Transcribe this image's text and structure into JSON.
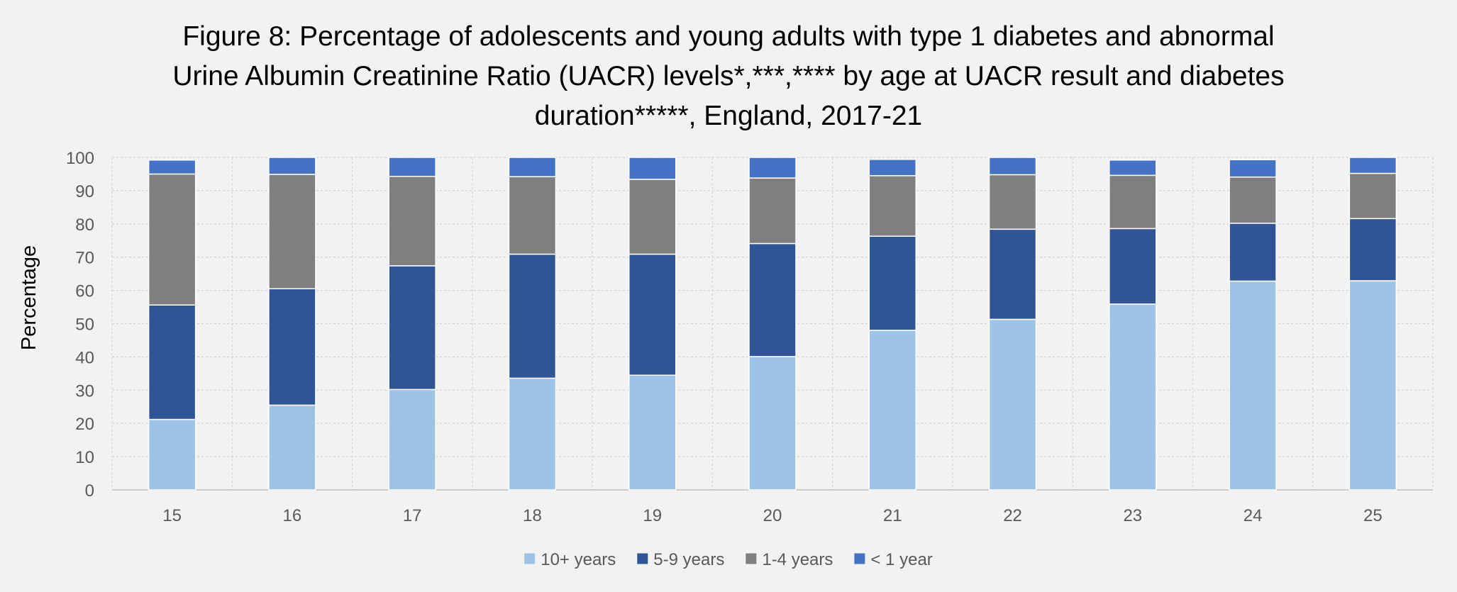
{
  "chart_data": {
    "type": "bar",
    "stacked": true,
    "title": [
      "Figure 8: Percentage of adolescents and young adults with type 1 diabetes and abnormal",
      "Urine Albumin Creatinine Ratio (UACR) levels*,***,**** by age at UACR result and diabetes",
      "duration*****, England, 2017-21"
    ],
    "xlabel": "",
    "ylabel": "Percentage",
    "ylim": [
      0,
      100
    ],
    "yticks": [
      0,
      10,
      20,
      30,
      40,
      50,
      60,
      70,
      80,
      90,
      100
    ],
    "grid": true,
    "legend_position": "bottom",
    "categories": [
      "15",
      "16",
      "17",
      "18",
      "19",
      "20",
      "21",
      "22",
      "23",
      "24",
      "25"
    ],
    "series": [
      {
        "name": "10+ years",
        "color": "#9dc3e6",
        "values": [
          21.2,
          25.5,
          30.2,
          33.6,
          34.5,
          40.1,
          48.0,
          51.3,
          55.9,
          62.8,
          62.9
        ]
      },
      {
        "name": "5-9 years",
        "color": "#2f5597",
        "values": [
          34.4,
          35.0,
          37.2,
          37.3,
          36.4,
          34.0,
          28.3,
          27.1,
          22.7,
          17.4,
          18.7
        ]
      },
      {
        "name": "1-4 years",
        "color": "#7f7f7f",
        "values": [
          39.4,
          34.4,
          26.9,
          23.3,
          22.5,
          19.7,
          18.2,
          16.4,
          16.0,
          13.9,
          13.6
        ]
      },
      {
        "name": "< 1 year",
        "color": "#4472c4",
        "values": [
          4.2,
          5.1,
          5.7,
          5.8,
          6.6,
          6.2,
          4.9,
          5.2,
          4.6,
          5.2,
          4.8
        ]
      }
    ]
  }
}
